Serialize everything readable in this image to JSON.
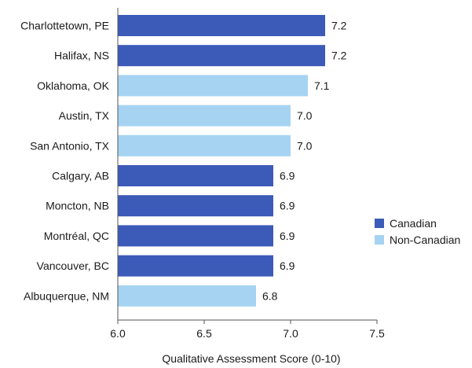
{
  "chart_data": {
    "type": "bar",
    "orientation": "horizontal",
    "categories": [
      "Charlottetown, PE",
      "Halifax, NS",
      "Oklahoma, OK",
      "Austin, TX",
      "San Antonio, TX",
      "Calgary, AB",
      "Moncton, NB",
      "Montréal, QC",
      "Vancouver, BC",
      "Albuquerque, NM"
    ],
    "values": [
      7.2,
      7.2,
      7.1,
      7.0,
      7.0,
      6.9,
      6.9,
      6.9,
      6.9,
      6.8
    ],
    "value_labels": [
      "7.2",
      "7.2",
      "7.1",
      "7.0",
      "7.0",
      "6.9",
      "6.9",
      "6.9",
      "6.9",
      "6.8"
    ],
    "groups": [
      "Canadian",
      "Canadian",
      "Non-Canadian",
      "Non-Canadian",
      "Non-Canadian",
      "Canadian",
      "Canadian",
      "Canadian",
      "Canadian",
      "Non-Canadian"
    ],
    "xlabel": "Qualitative Assessment Score (0-10)",
    "ylabel": "",
    "title": "",
    "xlim": [
      6.0,
      7.5
    ],
    "xticks": [
      "6.0",
      "6.5",
      "7.0",
      "7.5"
    ],
    "grid": false,
    "legend": {
      "placement": "right",
      "entries": [
        {
          "name": "Canadian",
          "color": "#3c5ab8"
        },
        {
          "name": "Non-Canadian",
          "color": "#a6d3f2"
        }
      ]
    }
  }
}
